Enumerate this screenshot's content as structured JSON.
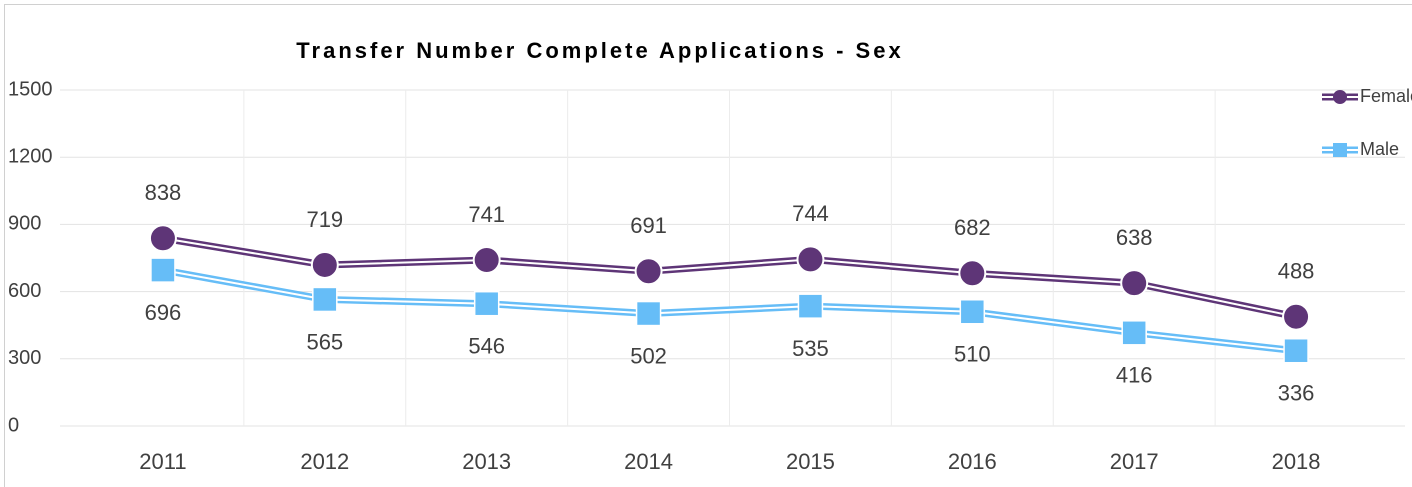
{
  "chart_data": {
    "type": "line",
    "title": "Transfer Number Complete Applications - Sex",
    "categories": [
      "2011",
      "2012",
      "2013",
      "2014",
      "2015",
      "2016",
      "2017",
      "2018"
    ],
    "series": [
      {
        "name": "Female",
        "color": "#5e3577",
        "marker": "circle",
        "values": [
          838,
          719,
          741,
          691,
          744,
          682,
          638,
          488
        ]
      },
      {
        "name": "Male",
        "color": "#66bdf7",
        "marker": "square",
        "values": [
          696,
          565,
          546,
          502,
          535,
          510,
          416,
          336
        ]
      }
    ],
    "ylim": [
      0,
      1500
    ],
    "yticks": [
      0,
      300,
      600,
      900,
      1200,
      1500
    ],
    "grid": true,
    "legend": "top-right"
  }
}
